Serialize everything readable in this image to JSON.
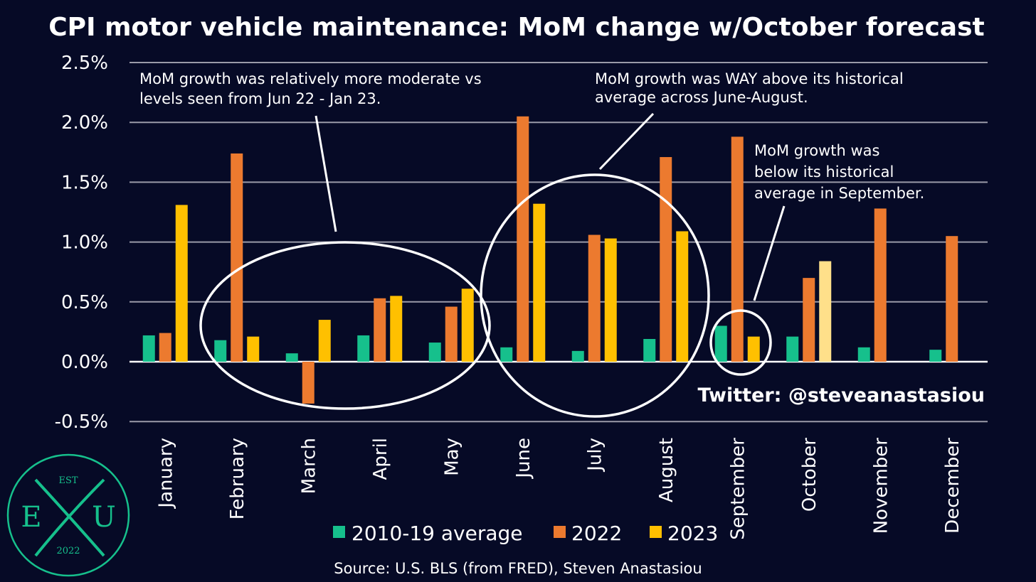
{
  "title": "CPI motor vehicle maintenance: MoM change w/October forecast",
  "twitter_handle": "Twitter: @steveanastasiou",
  "source": "Source: U.S. BLS (from FRED), Steven Anastasiou",
  "annotations": [
    "MoM growth was relatively more moderate vs levels seen from Jun 22 - Jan 23.",
    "MoM growth was WAY above its historical average across June-August.",
    "MoM growth was below its historical average in September."
  ],
  "logo": {
    "top": "EST",
    "left": "E",
    "right": "U",
    "bottom": "2022"
  },
  "colors": {
    "background": "#060a26",
    "avg": "#16c08c",
    "y2022": "#ec7a2f",
    "y2023": "#ffc000",
    "y2023_forecast": "#ffe08a",
    "grid": "#9a9aa8"
  },
  "chart_data": {
    "type": "bar",
    "title": "CPI motor vehicle maintenance: MoM change w/October forecast",
    "categories": [
      "January",
      "February",
      "March",
      "April",
      "May",
      "June",
      "July",
      "August",
      "September",
      "October",
      "November",
      "December"
    ],
    "ylim": [
      -0.5,
      2.5
    ],
    "yticks": [
      "-0.5%",
      "0.0%",
      "0.5%",
      "1.0%",
      "1.5%",
      "2.0%",
      "2.5%"
    ],
    "ytick_values": [
      -0.5,
      0.0,
      0.5,
      1.0,
      1.5,
      2.0,
      2.5
    ],
    "grid": true,
    "legend_position": "bottom",
    "series": [
      {
        "name": "2010-19 average",
        "values": [
          0.22,
          0.18,
          0.07,
          0.22,
          0.16,
          0.12,
          0.09,
          0.19,
          0.3,
          0.21,
          0.12,
          0.1
        ]
      },
      {
        "name": "2022",
        "values": [
          0.24,
          1.74,
          -0.35,
          0.53,
          0.46,
          2.05,
          1.06,
          1.71,
          1.88,
          0.7,
          1.28,
          1.05
        ]
      },
      {
        "name": "2023",
        "values": [
          1.31,
          0.21,
          0.35,
          0.55,
          0.61,
          1.32,
          1.03,
          1.09,
          0.21,
          0.84,
          null,
          null
        ]
      }
    ],
    "forecast_category": "October"
  }
}
